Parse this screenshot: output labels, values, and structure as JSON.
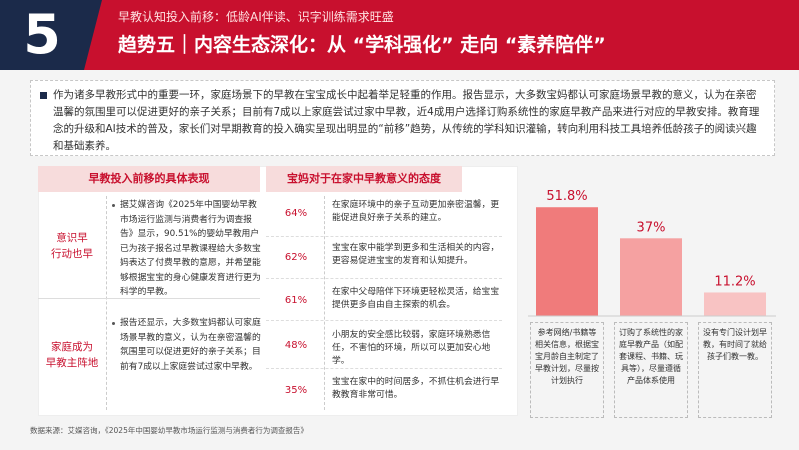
{
  "header": {
    "number": "5",
    "subtitle": "早教认知投入前移：低龄AI伴读、识字训练需求旺盛",
    "title": "趋势五｜内容生态深化：从 “学科强化” 走向 “素养陪伴”"
  },
  "intro": "作为诸多早教形式中的重要一环，家庭场景下的早教在宝宝成长中起着举足轻重的作用。报告显示，大多数宝妈都认可家庭场景早教的意义，认为在亲密温馨的氛围里可以促进更好的亲子关系；目前有7成以上家庭尝试过家中早教，近4成用户选择订购系统性的家庭早教产品来进行对应的早教安排。教育理念的升级和AI技术的普及，家长们对早期教育的投入确实呈现出明显的“前移”趋势，从传统的学科知识灌输，转向利用科技工具培养低龄孩子的阅读兴趣和基础素养。",
  "left_table": {
    "header": "早教投入前移的具体表现",
    "rows": [
      {
        "category": "意识早\n行动也早",
        "desc": "据艾媒咨询《2025年中国婴幼早教市场运行监测与消费者行为调查报告》显示，90.51%的婴幼早教用户已为孩子报名过早教课程给大多数宝妈表达了付费早教的意愿，并希望能够根据宝宝的身心健康发育进行更为科学的早教。"
      },
      {
        "category": "家庭成为\n早教主阵地",
        "desc": "报告还显示，大多数宝妈都认可家庭场景早教的意义，认为在亲密温馨的氛围里可以促进更好的亲子关系；目前有7成以上家庭尝试过家中早教。"
      }
    ]
  },
  "attitude_table": {
    "header": "宝妈对于在家中早教意义的态度",
    "rows": [
      {
        "pct": "64%",
        "text": "在家庭环境中的亲子互动更加亲密温馨，更能促进良好亲子关系的建立。"
      },
      {
        "pct": "62%",
        "text": "宝宝在家中能学到更多和生活相关的内容，更容易促进宝宝的发育和认知提升。"
      },
      {
        "pct": "61%",
        "text": "在家中父母陪伴下环境更轻松灵活，给宝宝提供更多自由自主探索的机会。"
      },
      {
        "pct": "48%",
        "text": "小朋友的安全感比较弱，家庭环境熟悉信任，不害怕的环境，所以可以更加安心地学。"
      },
      {
        "pct": "35%",
        "text": "宝宝在家中的时间居多，不抓住机会进行早教教育非常可惜。"
      }
    ]
  },
  "chart_data": {
    "type": "bar",
    "categories": [
      "参考网络/书籍等相关信息，根据宝宝月龄自主制定了早教计划，尽量按计划执行",
      "订购了系统性的家庭早教产品（如配套课程、书籍、玩具等），尽量遵循产品体系使用",
      "没有专门设计划早教，有时间了就给孩子们教一教。"
    ],
    "values": [
      51.8,
      37,
      11.2
    ],
    "value_labels": [
      "51.8%",
      "37%",
      "11.2%"
    ],
    "ylim": [
      0,
      60
    ],
    "grid": false,
    "colors": [
      "#f07b7b",
      "#f5a1a1",
      "#f8c3c3"
    ]
  },
  "source": "数据来源：艾媒咨询，《2025年中国婴幼早教市场运行监测与消费者行为调查报告》"
}
